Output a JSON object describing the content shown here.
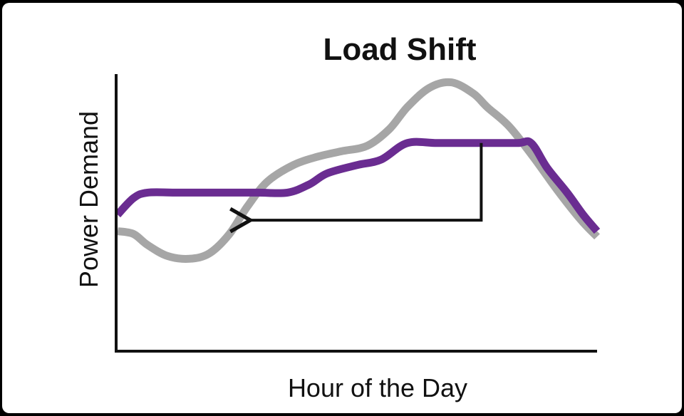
{
  "chart_data": {
    "type": "line",
    "title": "Load Shift",
    "xlabel": "Hour of the Day",
    "ylabel": "Power Demand",
    "ticks": "none",
    "grid": false,
    "legend": "none",
    "xlim": [
      0,
      24
    ],
    "ylim": [
      0,
      10
    ],
    "series": [
      {
        "color": "#a6a6a6",
        "x": [
          0,
          0.8,
          1.5,
          2.5,
          3.6,
          4.6,
          5.6,
          6.5,
          7.5,
          8.8,
          10,
          11.2,
          12.5,
          13.6,
          14.5,
          15.6,
          16.7,
          17.8,
          18.5,
          19.6,
          20.8,
          22,
          23.2,
          24
        ],
        "y": [
          4.3,
          4.2,
          3.8,
          3.4,
          3.3,
          3.5,
          4.2,
          5.2,
          6.1,
          6.7,
          7.0,
          7.2,
          7.4,
          8.0,
          8.8,
          9.5,
          9.7,
          9.3,
          8.8,
          8.1,
          7.0,
          5.8,
          4.7,
          4.1
        ]
      },
      {
        "color": "#6a2c91",
        "x": [
          0,
          0.8,
          1.5,
          3,
          5,
          7,
          8.5,
          9.6,
          10.5,
          12,
          13.2,
          14.5,
          16,
          18,
          20,
          20.7,
          21.5,
          22.5,
          23.3,
          24
        ],
        "y": [
          4.9,
          5.5,
          5.7,
          5.7,
          5.7,
          5.7,
          5.7,
          6.0,
          6.4,
          6.7,
          6.9,
          7.5,
          7.5,
          7.5,
          7.5,
          7.5,
          6.6,
          5.7,
          4.9,
          4.3
        ]
      }
    ],
    "annotations": [
      {
        "type": "arrow",
        "from": [
          18.2,
          7.5
        ],
        "via": [
          18.2,
          4.7
        ],
        "to": [
          6.5,
          4.7
        ]
      }
    ]
  }
}
